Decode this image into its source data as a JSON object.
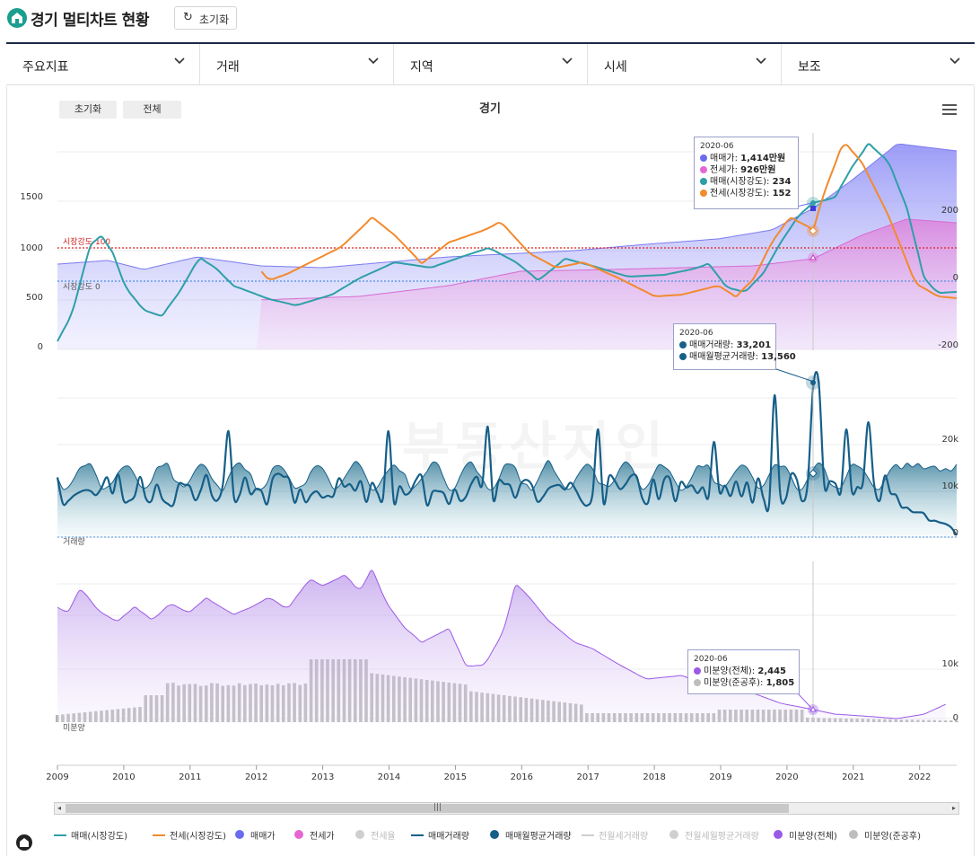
{
  "header": {
    "title": "경기 멀티차트 현황",
    "reset_label": "초기화"
  },
  "tabs": [
    {
      "label": "주요지표"
    },
    {
      "label": "거래"
    },
    {
      "label": "지역"
    },
    {
      "label": "시세"
    },
    {
      "label": "보조"
    }
  ],
  "chart_controls": {
    "reset_label": "초기화",
    "all_label": "전체"
  },
  "watermark": "부동산지인",
  "chart_data": {
    "type": "line",
    "title": "경기",
    "x_ticks": [
      "2009",
      "2010",
      "2011",
      "2012",
      "2013",
      "2014",
      "2015",
      "2016",
      "2017",
      "2018",
      "2019",
      "2020",
      "2021",
      "2022"
    ],
    "panel1": {
      "left_ticks": [
        "0",
        "500",
        "1000",
        "1500"
      ],
      "right_ticks": [
        "-200",
        "0",
        "200"
      ],
      "ref_lines": [
        "시장강도 100",
        "시장강도 0"
      ],
      "series": [
        "매매(시장강도)",
        "전세(시장강도)",
        "매매가",
        "전세가"
      ]
    },
    "panel2": {
      "right_ticks": [
        "0",
        "10k",
        "20k"
      ],
      "label": "거래량",
      "series": [
        "매매거래량",
        "매매월평균거래량"
      ]
    },
    "panel3": {
      "right_ticks": [
        "0",
        "10k"
      ],
      "label": "미분양",
      "series": [
        "미분양(전체)",
        "미분양(준공후)"
      ]
    }
  },
  "tooltips": {
    "t1": {
      "date": "2020-06",
      "rows": [
        {
          "label": "매매가: ",
          "value": "1,414만원",
          "color": "#6b6bf0"
        },
        {
          "label": "전세가: ",
          "value": "926만원",
          "color": "#e566d3"
        },
        {
          "label": "매매(시장강도): ",
          "value": "234",
          "color": "#2f9fa8"
        },
        {
          "label": "전세(시장강도): ",
          "value": "152",
          "color": "#f28a2e"
        }
      ]
    },
    "t2": {
      "date": "2020-06",
      "rows": [
        {
          "label": "매매거래량: ",
          "value": "33,201",
          "color": "#165f88"
        },
        {
          "label": "매매월평균거래량: ",
          "value": "13,560",
          "color": "#165f88"
        }
      ]
    },
    "t3": {
      "date": "2020-06",
      "rows": [
        {
          "label": "미분양(전체): ",
          "value": "2,445",
          "color": "#9b59e6"
        },
        {
          "label": "미분양(준공후): ",
          "value": "1,805",
          "color": "#bdbdbd"
        }
      ]
    }
  },
  "legend": [
    {
      "label": "매매(시장강도)",
      "kind": "line",
      "color": "#2f9fa8",
      "on": true
    },
    {
      "label": "전세(시장강도)",
      "kind": "line",
      "color": "#f28a2e",
      "on": true
    },
    {
      "label": "매매가",
      "kind": "dot",
      "color": "#6b6bf0",
      "on": true
    },
    {
      "label": "전세가",
      "kind": "dot",
      "color": "#e566d3",
      "on": true
    },
    {
      "label": "전세율",
      "kind": "dot",
      "color": "#cfcfcf",
      "on": false
    },
    {
      "label": "매매거래량",
      "kind": "line",
      "color": "#165f88",
      "on": true
    },
    {
      "label": "매매월평균거래량",
      "kind": "dot",
      "color": "#165f88",
      "on": true
    },
    {
      "label": "전월세거래량",
      "kind": "line",
      "color": "#cfcfcf",
      "on": false
    },
    {
      "label": "전월세월평균거래량",
      "kind": "dot",
      "color": "#cfcfcf",
      "on": false
    },
    {
      "label": "미분양(전체)",
      "kind": "dot",
      "color": "#9b59e6",
      "on": true
    },
    {
      "label": "미분양(준공후)",
      "kind": "dot",
      "color": "#bdbdbd",
      "on": true
    }
  ]
}
